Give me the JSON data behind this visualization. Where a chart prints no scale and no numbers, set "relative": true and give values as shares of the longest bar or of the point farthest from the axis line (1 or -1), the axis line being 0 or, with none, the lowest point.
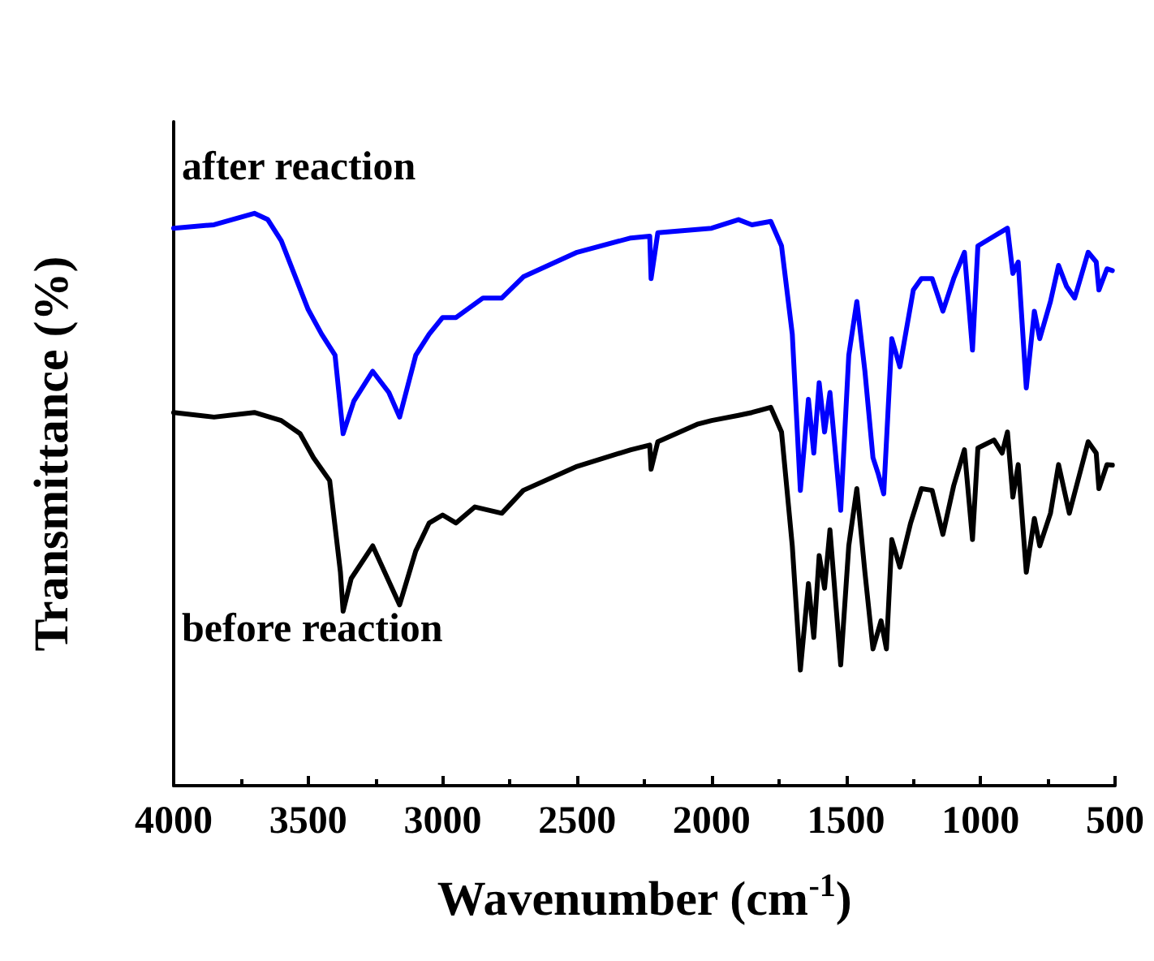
{
  "chart_data": {
    "type": "line",
    "xlabel": "Wavenumber (cm$^{-1}$)",
    "ylabel": "Transmittance (%)",
    "relative": true,
    "tick_labels": "x",
    "xlim": [
      4000,
      500
    ],
    "xticks": [
      4000,
      3500,
      3000,
      2500,
      2000,
      1500,
      1000,
      500
    ],
    "legend": false,
    "grid": false,
    "marker": "none",
    "line_style": "solid",
    "series": [
      {
        "name": "after reaction",
        "color": "#0000ff",
        "x": [
          4000,
          3850,
          3700,
          3650,
          3600,
          3500,
          3450,
          3400,
          3370,
          3330,
          3260,
          3200,
          3160,
          3100,
          3050,
          3000,
          2950,
          2850,
          2780,
          2700,
          2500,
          2300,
          2230,
          2225,
          2200,
          2000,
          1900,
          1850,
          1780,
          1740,
          1700,
          1670,
          1640,
          1620,
          1600,
          1580,
          1560,
          1520,
          1490,
          1460,
          1430,
          1400,
          1380,
          1360,
          1330,
          1300,
          1250,
          1220,
          1180,
          1160,
          1140,
          1100,
          1060,
          1030,
          1010,
          950,
          900,
          880,
          860,
          830,
          800,
          780,
          740,
          710,
          680,
          650,
          600,
          570,
          560,
          530,
          510
        ],
        "values": [
          0.974,
          0.98,
          1,
          0.989,
          0.952,
          0.832,
          0.789,
          0.752,
          0.615,
          0.672,
          0.724,
          0.687,
          0.644,
          0.752,
          0.789,
          0.818,
          0.818,
          0.852,
          0.852,
          0.889,
          0.932,
          0.957,
          0.96,
          0.886,
          0.966,
          0.974,
          0.989,
          0.98,
          0.986,
          0.943,
          0.789,
          0.516,
          0.675,
          0.581,
          0.704,
          0.618,
          0.687,
          0.481,
          0.752,
          0.846,
          0.724,
          0.573,
          0.544,
          0.51,
          0.781,
          0.732,
          0.866,
          0.886,
          0.886,
          0.858,
          0.829,
          0.886,
          0.932,
          0.761,
          0.943,
          0.96,
          0.974,
          0.895,
          0.915,
          0.695,
          0.829,
          0.781,
          0.846,
          0.909,
          0.872,
          0.852,
          0.932,
          0.915,
          0.866,
          0.903,
          0.9
        ]
      },
      {
        "name": "before reaction",
        "color": "#000000",
        "x": [
          4000,
          3850,
          3700,
          3600,
          3530,
          3480,
          3420,
          3380,
          3370,
          3340,
          3260,
          3160,
          3100,
          3050,
          3000,
          2950,
          2880,
          2780,
          2700,
          2500,
          2300,
          2230,
          2225,
          2200,
          2050,
          2000,
          1900,
          1850,
          1780,
          1740,
          1700,
          1670,
          1640,
          1620,
          1600,
          1580,
          1560,
          1520,
          1490,
          1460,
          1430,
          1400,
          1370,
          1350,
          1330,
          1300,
          1260,
          1220,
          1180,
          1140,
          1100,
          1060,
          1030,
          1010,
          950,
          920,
          900,
          880,
          860,
          830,
          800,
          780,
          740,
          710,
          670,
          600,
          570,
          560,
          530,
          510
        ],
        "values": [
          0.652,
          0.644,
          0.652,
          0.638,
          0.615,
          0.573,
          0.533,
          0.373,
          0.305,
          0.362,
          0.419,
          0.316,
          0.41,
          0.459,
          0.473,
          0.459,
          0.487,
          0.476,
          0.516,
          0.558,
          0.587,
          0.595,
          0.553,
          0.601,
          0.632,
          0.638,
          0.647,
          0.652,
          0.661,
          0.618,
          0.419,
          0.202,
          0.353,
          0.259,
          0.402,
          0.345,
          0.447,
          0.211,
          0.419,
          0.519,
          0.373,
          0.239,
          0.288,
          0.239,
          0.43,
          0.382,
          0.459,
          0.519,
          0.516,
          0.439,
          0.524,
          0.587,
          0.43,
          0.59,
          0.604,
          0.581,
          0.618,
          0.504,
          0.561,
          0.373,
          0.467,
          0.419,
          0.476,
          0.561,
          0.476,
          0.601,
          0.581,
          0.519,
          0.561,
          0.56
        ]
      }
    ]
  }
}
